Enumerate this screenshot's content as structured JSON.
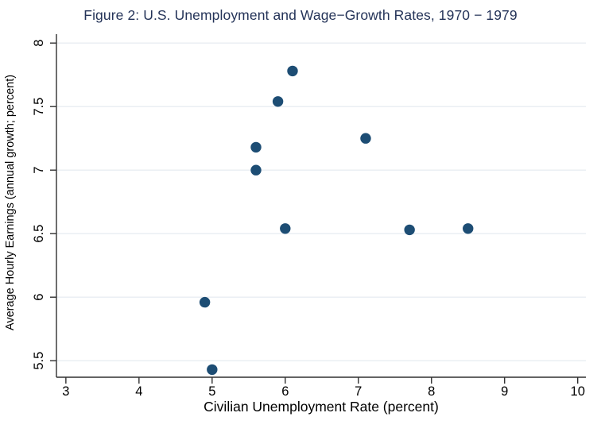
{
  "chart_data": {
    "type": "scatter",
    "title": "Figure 2: U.S. Unemployment and Wage−Growth Rates, 1970 − 1979",
    "xlabel": "Civilian Unemployment Rate (percent)",
    "ylabel": "Average Hourly Earnings (annual growth; percent)",
    "x_ticks": [
      3,
      4,
      5,
      6,
      7,
      8,
      9,
      10
    ],
    "y_ticks": [
      5.5,
      6,
      6.5,
      7,
      7.5,
      8
    ],
    "xlim": [
      2.871,
      10.112
    ],
    "ylim": [
      5.37,
      8.07
    ],
    "grid": "horizontal-only",
    "legend": "none",
    "marker": "filled-circle",
    "points": [
      {
        "x": 6.1,
        "y": 7.78
      },
      {
        "x": 5.9,
        "y": 7.54
      },
      {
        "x": 7.1,
        "y": 7.25
      },
      {
        "x": 5.6,
        "y": 7.18
      },
      {
        "x": 5.6,
        "y": 7.0
      },
      {
        "x": 6.0,
        "y": 6.54
      },
      {
        "x": 7.7,
        "y": 6.53
      },
      {
        "x": 8.5,
        "y": 6.54
      },
      {
        "x": 4.9,
        "y": 5.96
      },
      {
        "x": 5.0,
        "y": 5.43
      }
    ],
    "colors": {
      "point": "#1d4d74",
      "title": "#253459",
      "grid": "#e8edf2",
      "axis": "#303030",
      "tick_label": "#000000"
    }
  }
}
